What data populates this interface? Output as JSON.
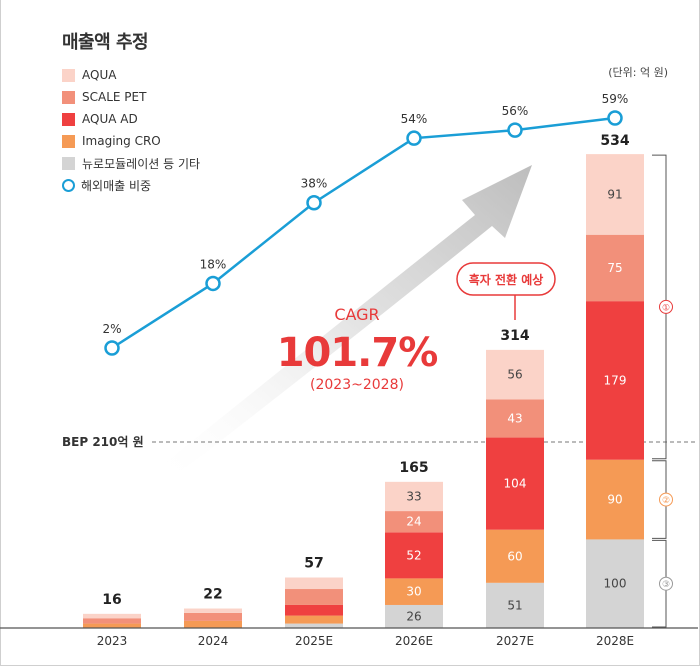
{
  "title": "매출액 추정",
  "unit": "(단위: 억 원)",
  "colors": {
    "AQUA": "#fbd3c8",
    "SCALE PET": "#f2907a",
    "AQUA AD": "#ef4040",
    "Imaging CRO": "#f59a55",
    "뉴로모듈레이션 등 기타": "#d4d4d4",
    "line": "#1a9ed6",
    "accent": "#e83a3a"
  },
  "legend": [
    {
      "label": "AQUA",
      "key": "AQUA",
      "shape": "square"
    },
    {
      "label": "SCALE PET",
      "key": "SCALE PET",
      "shape": "square"
    },
    {
      "label": "AQUA AD",
      "key": "AQUA AD",
      "shape": "square"
    },
    {
      "label": "Imaging CRO",
      "key": "Imaging CRO",
      "shape": "square"
    },
    {
      "label": "뉴로모듈레이션 등 기타",
      "key": "뉴로모듈레이션 등 기타",
      "shape": "square"
    },
    {
      "label": "해외매출 비중",
      "key": "line",
      "shape": "circle"
    }
  ],
  "chart_data": {
    "type": "bar",
    "stacked": true,
    "categories": [
      "2023",
      "2024",
      "2025E",
      "2026E",
      "2027E",
      "2028E"
    ],
    "series": [
      {
        "name": "뉴로모듈레이션 등 기타",
        "values": [
          0,
          0,
          5,
          26,
          51,
          100
        ]
      },
      {
        "name": "Imaging CRO",
        "values": [
          5,
          8,
          9,
          30,
          60,
          90
        ]
      },
      {
        "name": "AQUA AD",
        "values": [
          0,
          0,
          12,
          52,
          104,
          179
        ]
      },
      {
        "name": "SCALE PET",
        "values": [
          6,
          9,
          18,
          24,
          43,
          75
        ]
      },
      {
        "name": "AQUA",
        "values": [
          5,
          5,
          13,
          33,
          56,
          91
        ]
      }
    ],
    "segment_labels_shown": [
      false,
      false,
      false,
      true,
      true,
      true
    ],
    "totals": [
      16,
      22,
      57,
      165,
      314,
      534
    ],
    "line_series": {
      "name": "해외매출 비중",
      "values": [
        2,
        18,
        38,
        54,
        56,
        59
      ],
      "labels": [
        "2%",
        "18%",
        "38%",
        "54%",
        "56%",
        "59%"
      ]
    },
    "ylim": [
      0,
      534
    ],
    "reference_line": {
      "label": "BEP 210억 원",
      "value": 210
    },
    "annotations": {
      "cagr_title": "CAGR",
      "cagr_value": "101.7%",
      "cagr_period": "(2023~2028)",
      "callout": "흑자 전환 예상"
    },
    "brackets": [
      "①",
      "②",
      "③"
    ],
    "grid": false,
    "legend_position": "top-left"
  }
}
